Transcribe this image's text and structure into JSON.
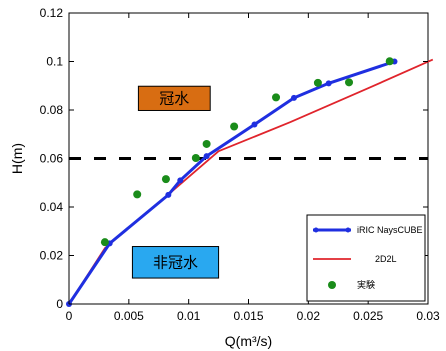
{
  "chart_data": {
    "type": "line",
    "xlabel": "Q(m³/s)",
    "ylabel": "H(m)",
    "xlim": [
      0,
      0.03
    ],
    "ylim": [
      0,
      0.12
    ],
    "xticks": [
      0,
      0.005,
      0.01,
      0.015,
      0.02,
      0.025,
      0.03
    ],
    "xtick_labels": [
      "0",
      "0.005",
      "0.01",
      "0.015",
      "0.02",
      "0.025",
      "0.03"
    ],
    "yticks": [
      0,
      0.02,
      0.04,
      0.06,
      0.08,
      0.1,
      0.12
    ],
    "ytick_labels": [
      "0",
      "0.02",
      "0.04",
      "0.06",
      "0.08",
      "0.1",
      "0.12"
    ],
    "grid": false,
    "legend_position": "bottom-right",
    "series": [
      {
        "name": "iRIC NaysCUBE",
        "type": "line",
        "color": "#1f2fe0",
        "marker": "circle",
        "points": [
          [
            0,
            0
          ],
          [
            0.0034,
            0.025
          ],
          [
            0.0083,
            0.045
          ],
          [
            0.0093,
            0.051
          ],
          [
            0.0115,
            0.061
          ],
          [
            0.0155,
            0.074
          ],
          [
            0.0188,
            0.085
          ],
          [
            0.0217,
            0.091
          ],
          [
            0.0272,
            0.1
          ]
        ]
      },
      {
        "name": "2D2L",
        "type": "line",
        "color": "#e0242c",
        "marker": "none",
        "points": [
          [
            0,
            0
          ],
          [
            0.003,
            0.023
          ],
          [
            0.0085,
            0.046
          ],
          [
            0.0125,
            0.063
          ],
          [
            0.0185,
            0.075
          ],
          [
            0.025,
            0.089
          ],
          [
            0.0304,
            0.1008
          ]
        ]
      },
      {
        "name": "実験",
        "type": "scatter",
        "color": "#1a8c1a",
        "marker": "circle",
        "points": [
          [
            0.003,
            0.0255
          ],
          [
            0.0057,
            0.0452
          ],
          [
            0.0081,
            0.0515
          ],
          [
            0.0106,
            0.0602
          ],
          [
            0.0115,
            0.066
          ],
          [
            0.0138,
            0.0732
          ],
          [
            0.0173,
            0.0852
          ],
          [
            0.0208,
            0.0912
          ],
          [
            0.0234,
            0.0914
          ],
          [
            0.0268,
            0.1001
          ]
        ]
      }
    ],
    "threshold_line": {
      "y": 0.06,
      "style": "dashed",
      "color": "#000000"
    },
    "annotations": [
      {
        "text": "冠水",
        "fill": "#d86d12",
        "x_from": 0.0058,
        "x_to": 0.0118,
        "y_from": 0.0798,
        "y_to": 0.0898
      },
      {
        "text": "非冠水",
        "fill": "#29a8f0",
        "x_from": 0.0053,
        "x_to": 0.0125,
        "y_from": 0.0107,
        "y_to": 0.0237
      }
    ]
  }
}
